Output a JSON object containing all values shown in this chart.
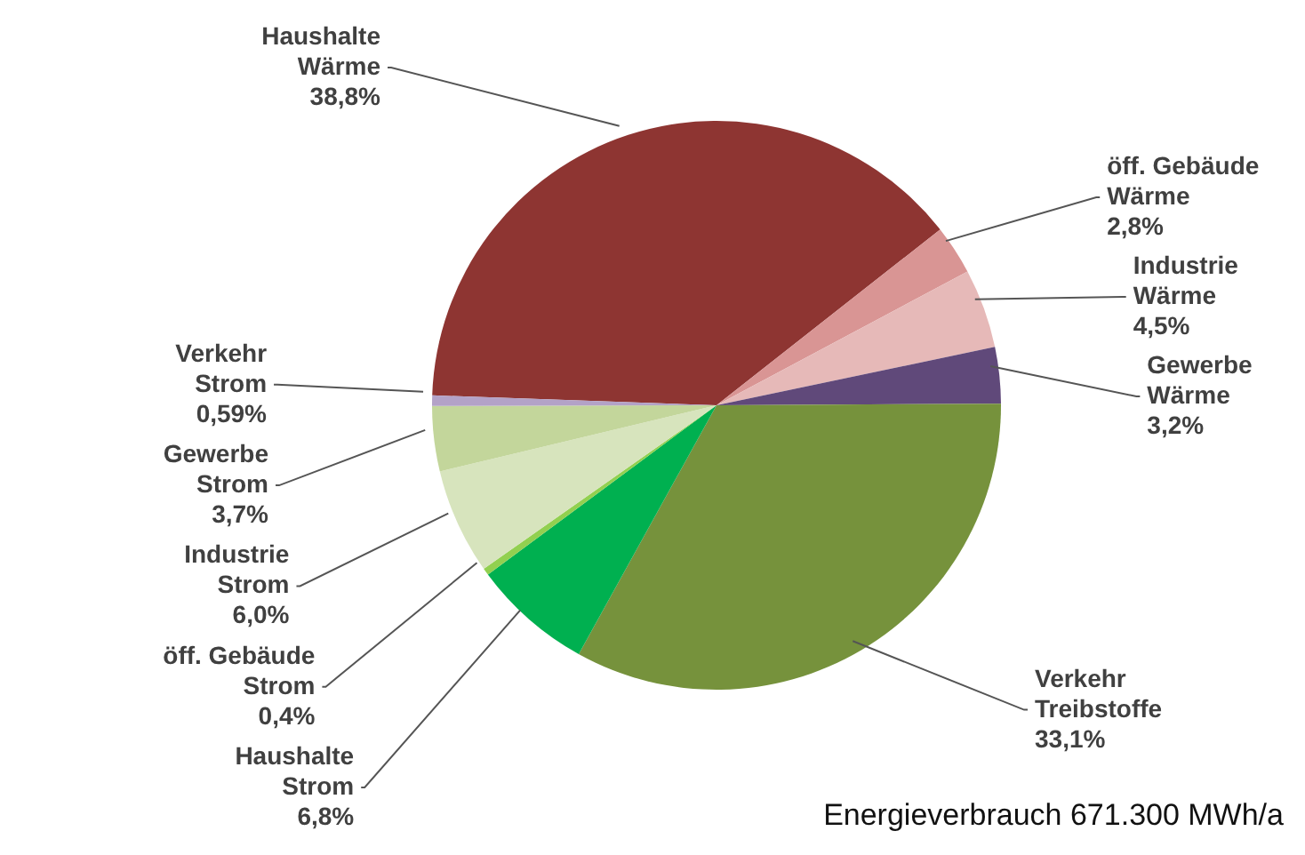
{
  "chart_data": {
    "type": "pie",
    "title": "Energieverbrauch 671.300 MWh/a",
    "categories": [
      "Haushalte Wärme",
      "öff. Gebäude Wärme",
      "Industrie Wärme",
      "Gewerbe Wärme",
      "Verkehr Treibstoffe",
      "Haushalte Strom",
      "öff. Gebäude Strom",
      "Industrie Strom",
      "Gewerbe Strom",
      "Verkehr Strom"
    ],
    "values": [
      38.8,
      2.8,
      4.5,
      3.2,
      33.1,
      6.8,
      0.4,
      6.0,
      3.7,
      0.59
    ],
    "value_labels": [
      "38,8%",
      "2,8%",
      "4,5%",
      "3,2%",
      "33,1%",
      "6,8%",
      "0,4%",
      "6,0%",
      "3,7%",
      "0,59%"
    ],
    "colors": [
      "#8e3532",
      "#d99594",
      "#e6b9b8",
      "#60497a",
      "#76923c",
      "#00b050",
      "#92d050",
      "#d7e4bd",
      "#c3d69b",
      "#b3a2c7"
    ],
    "legend": false
  }
}
